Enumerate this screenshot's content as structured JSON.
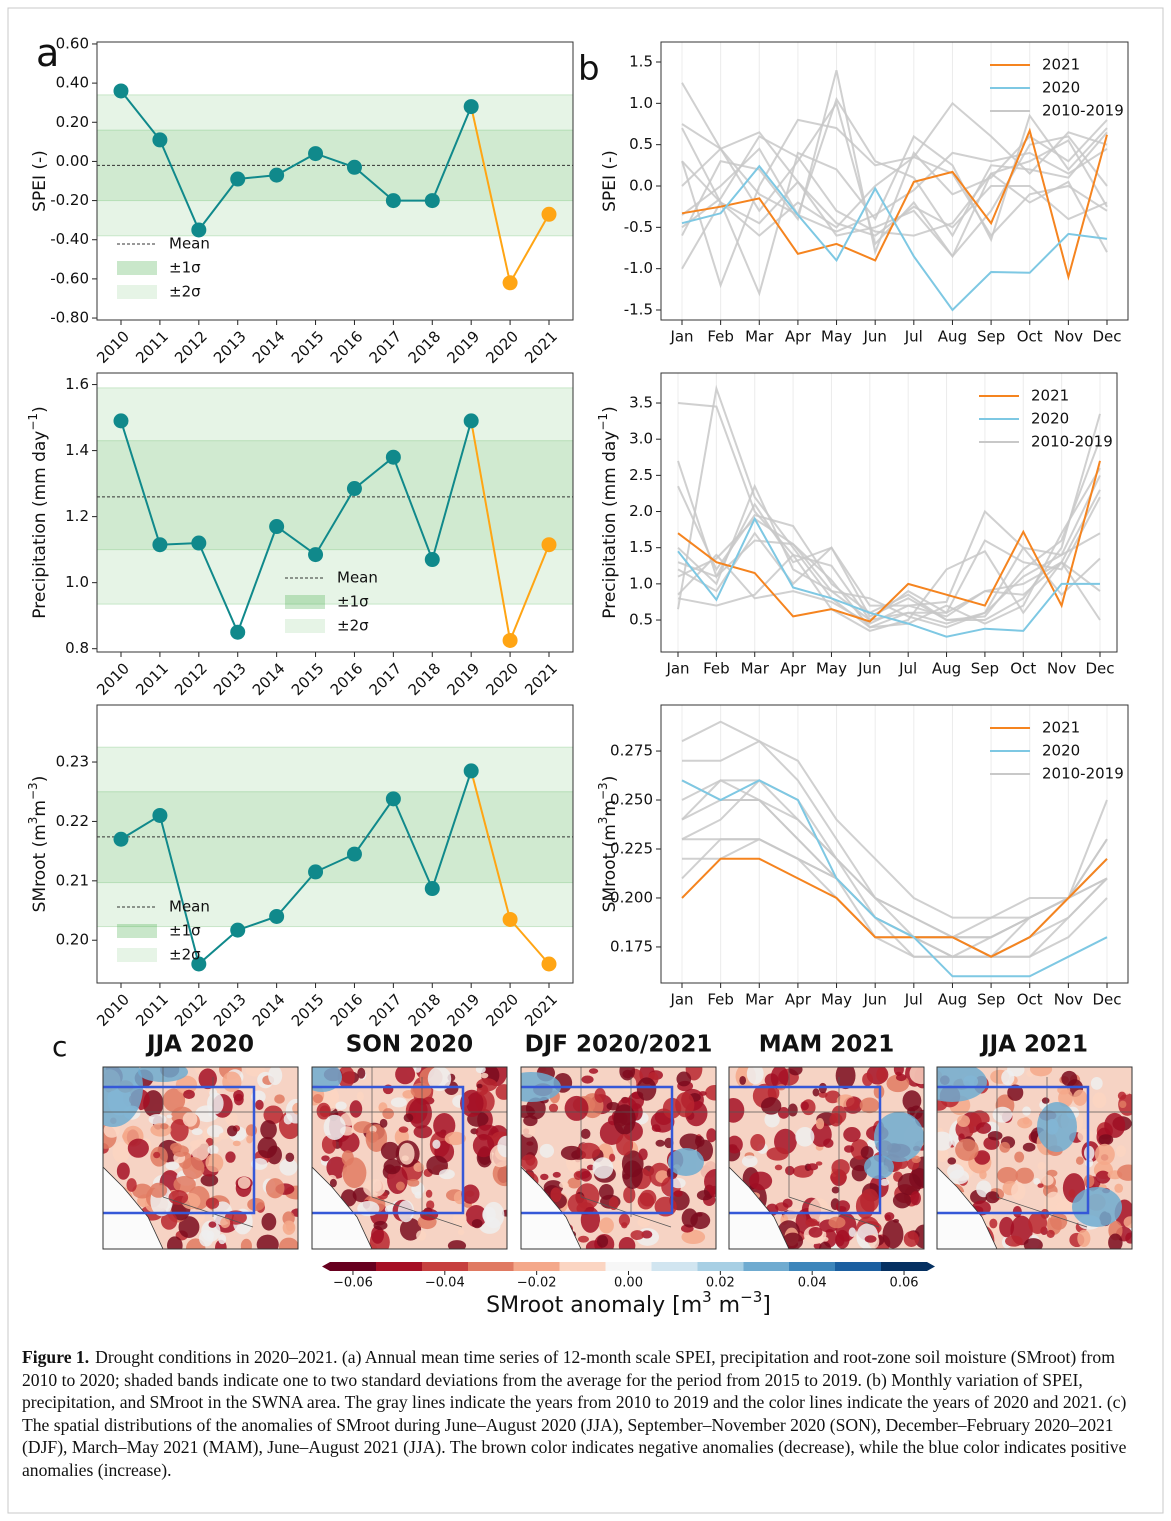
{
  "panel_labels": [
    "a",
    "b",
    "c"
  ],
  "chart_data": [
    {
      "type": "line",
      "ylabel": [
        "SPEI (-)"
      ],
      "categories": [
        "2010",
        "2011",
        "2012",
        "2013",
        "2014",
        "2015",
        "2016",
        "2017",
        "2018",
        "2019",
        "2020",
        "2021"
      ],
      "ylim": [
        -0.81,
        0.61
      ],
      "yticks": [
        {
          "value": 0.6,
          "label": "0.60"
        },
        {
          "value": 0.4,
          "label": "0.40"
        },
        {
          "value": 0.2,
          "label": "0.20"
        },
        {
          "value": 0,
          "label": "0.00"
        },
        {
          "value": -0.2,
          "label": "-0.20"
        },
        {
          "value": -0.4,
          "label": "-0.40"
        },
        {
          "value": -0.6,
          "label": "-0.60"
        },
        {
          "value": -0.8,
          "label": "-0.80"
        }
      ],
      "mean": -0.02,
      "mean_label": "Mean",
      "bands": [
        {
          "name": "±2σ",
          "lower": -0.38,
          "upper": 0.34,
          "color": "#4caf50"
        },
        {
          "name": "±1σ",
          "lower": -0.2,
          "upper": 0.16,
          "color": "#4caf50"
        }
      ],
      "markers": true,
      "legend": "lower left",
      "series": [
        {
          "color": "#10898b",
          "values": [
            0.36,
            0.11,
            -0.35,
            -0.09,
            -0.07,
            0.04,
            -0.03,
            -0.2,
            -0.2,
            0.28,
            null,
            null
          ]
        },
        {
          "color": "#ffa514",
          "join_previous": true,
          "values": [
            null,
            null,
            null,
            null,
            null,
            null,
            null,
            null,
            null,
            null,
            -0.62,
            -0.27
          ]
        }
      ]
    },
    {
      "type": "line",
      "ylabel": [
        "Precipitation (mm day",
        "−1",
        ")"
      ],
      "categories": [
        "2010",
        "2011",
        "2012",
        "2013",
        "2014",
        "2015",
        "2016",
        "2017",
        "2018",
        "2019",
        "2020",
        "2021"
      ],
      "ylim": [
        0.79,
        1.635
      ],
      "yticks": [
        0.8,
        {
          "value": 1,
          "label": "1.0"
        },
        1.2,
        1.4,
        1.6
      ],
      "mean": 1.26,
      "mean_label": "Mean",
      "bands": [
        {
          "name": "±2σ",
          "lower": 0.935,
          "upper": 1.59,
          "color": "#4caf50"
        },
        {
          "name": "±1σ",
          "lower": 1.1,
          "upper": 1.43,
          "color": "#4caf50"
        }
      ],
      "markers": true,
      "legend": "lower center",
      "series": [
        {
          "color": "#10898b",
          "values": [
            1.49,
            1.115,
            1.12,
            0.85,
            1.17,
            1.085,
            1.285,
            1.38,
            1.07,
            1.49,
            null,
            null
          ]
        },
        {
          "color": "#ffa514",
          "join_previous": true,
          "values": [
            null,
            null,
            null,
            null,
            null,
            null,
            null,
            null,
            null,
            null,
            0.825,
            1.115
          ]
        }
      ]
    },
    {
      "type": "line",
      "ylabel": [
        "SMroot (m",
        "3",
        "m",
        "−3",
        ")"
      ],
      "categories": [
        "2010",
        "2011",
        "2012",
        "2013",
        "2014",
        "2015",
        "2016",
        "2017",
        "2018",
        "2019",
        "2020",
        "2021"
      ],
      "ylim": [
        0.1928,
        0.2396
      ],
      "yticks": [
        {
          "value": 0.2,
          "label": "0.20"
        },
        0.21,
        0.22,
        0.23
      ],
      "mean": 0.2174,
      "mean_label": "Mean",
      "bands": [
        {
          "name": "±2σ",
          "lower": 0.2023,
          "upper": 0.2325,
          "color": "#4caf50"
        },
        {
          "name": "±1σ",
          "lower": 0.2097,
          "upper": 0.225,
          "color": "#4caf50"
        }
      ],
      "markers": true,
      "legend": "lower left",
      "series": [
        {
          "color": "#10898b",
          "values": [
            0.217,
            0.221,
            0.196,
            0.2017,
            0.204,
            0.2115,
            0.2145,
            0.2238,
            0.2087,
            0.2285,
            null,
            null
          ]
        },
        {
          "color": "#ffa514",
          "join_previous": true,
          "values": [
            null,
            null,
            null,
            null,
            null,
            null,
            null,
            null,
            null,
            null,
            0.2035,
            0.196
          ]
        }
      ]
    },
    {
      "type": "line",
      "ylabel": [
        "SPEI (-)"
      ],
      "categories": [
        "Jan",
        "Feb",
        "Mar",
        "Apr",
        "May",
        "Jun",
        "Jul",
        "Aug",
        "Sep",
        "Oct",
        "Nov",
        "Dec"
      ],
      "ylim": [
        -1.621,
        1.742
      ],
      "yticks": [
        1.5,
        {
          "value": 1,
          "label": "1.0"
        },
        0.5,
        {
          "value": 0,
          "label": "0.0"
        },
        -0.5,
        {
          "value": -1,
          "label": "-1.0"
        },
        -1.5
      ],
      "grid": "x",
      "legend": "upper right",
      "series": [
        {
          "name": "2021",
          "color": "#f5841f",
          "values": [
            -0.33,
            -0.25,
            -0.15,
            -0.82,
            -0.7,
            -0.9,
            0.05,
            0.17,
            -0.45,
            0.67,
            -1.1,
            0.62
          ]
        },
        {
          "name": "2020",
          "color": "#7ec8e3",
          "values": [
            -0.45,
            -0.33,
            0.24,
            -0.35,
            -0.9,
            -0.03,
            -0.85,
            -1.5,
            -1.04,
            -1.05,
            -0.58,
            -0.64
          ]
        },
        {
          "name": "2010-2019",
          "color": "#c8c8c8",
          "lines": [
            [
              1.25,
              0.45,
              -0.1,
              -0.35,
              1.05,
              0.3,
              0.1,
              -0.6,
              0.25,
              0.2,
              0.1,
              0.65
            ],
            [
              0.75,
              0.45,
              0.65,
              0.05,
              -0.6,
              -0.5,
              -0.3,
              -0.85,
              0.15,
              0.3,
              0.55,
              -0.25
            ],
            [
              -1.0,
              -0.2,
              -1.3,
              0.4,
              0.2,
              -0.4,
              0.6,
              0.25,
              -0.65,
              0.85,
              0.2,
              0.7
            ],
            [
              0.3,
              -1.2,
              0.0,
              0.8,
              0.7,
              0.25,
              0.35,
              1.0,
              0.6,
              0.15,
              0.65,
              0.5
            ],
            [
              -0.6,
              0.3,
              0.2,
              -0.4,
              1.4,
              -0.8,
              0.4,
              -0.1,
              0.1,
              0.6,
              0.3,
              0.8
            ],
            [
              -0.5,
              -0.15,
              0.6,
              0.35,
              -0.3,
              -0.55,
              -0.6,
              -0.45,
              0.15,
              -0.2,
              0.05,
              -0.8
            ],
            [
              0.0,
              0.45,
              -0.3,
              0.3,
              1.0,
              -0.7,
              -0.2,
              -0.85,
              -0.3,
              0.5,
              0.6,
              0.0
            ],
            [
              0.7,
              -0.2,
              -0.6,
              -0.2,
              -0.5,
              0.0,
              0.35,
              0.15,
              -0.6,
              -0.1,
              0.0,
              -0.3
            ],
            [
              -0.35,
              0.0,
              0.45,
              -0.35,
              -0.55,
              -0.35,
              -0.05,
              0.4,
              0.3,
              0.4,
              0.15,
              0.45
            ],
            [
              0.3,
              -0.2,
              -0.45,
              0.05,
              -0.45,
              -0.6,
              -0.25,
              -0.5,
              0.0,
              0.0,
              -0.4,
              -0.2
            ]
          ]
        }
      ]
    },
    {
      "type": "line",
      "ylabel": [
        "Precipitation (mm day",
        "−1",
        ")"
      ],
      "categories": [
        "Jan",
        "Feb",
        "Mar",
        "Apr",
        "May",
        "Jun",
        "Jul",
        "Aug",
        "Sep",
        "Oct",
        "Nov",
        "Dec"
      ],
      "ylim": [
        0.058,
        3.915
      ],
      "yticks": [
        0.5,
        {
          "value": 1,
          "label": "1.0"
        },
        1.5,
        {
          "value": 2,
          "label": "2.0"
        },
        2.5,
        {
          "value": 3,
          "label": "3.0"
        },
        3.5
      ],
      "grid": "x",
      "legend": "upper right",
      "series": [
        {
          "name": "2021",
          "color": "#f5841f",
          "values": [
            1.7,
            1.3,
            1.15,
            0.55,
            0.65,
            0.48,
            1.0,
            0.85,
            0.7,
            1.72,
            0.7,
            2.7
          ]
        },
        {
          "name": "2020",
          "color": "#7ec8e3",
          "values": [
            1.45,
            0.78,
            1.9,
            0.95,
            0.8,
            0.6,
            0.45,
            0.27,
            0.38,
            0.35,
            1.0,
            1.0
          ]
        },
        {
          "name": "2010-2019",
          "color": "#c8c8c8",
          "lines": [
            [
              3.5,
              3.45,
              2.0,
              1.4,
              1.25,
              0.5,
              0.9,
              0.6,
              0.9,
              1.0,
              1.3,
              2.3
            ],
            [
              2.7,
              1.1,
              2.1,
              1.3,
              1.5,
              0.55,
              0.8,
              0.5,
              0.5,
              0.8,
              1.5,
              3.35
            ],
            [
              0.65,
              3.7,
              2.2,
              1.5,
              0.8,
              0.4,
              0.6,
              0.6,
              1.6,
              1.3,
              1.2,
              2.2
            ],
            [
              2.35,
              1.2,
              1.95,
              1.8,
              1.0,
              0.6,
              0.85,
              0.5,
              0.55,
              1.2,
              1.6,
              3.0
            ],
            [
              0.8,
              0.7,
              0.85,
              1.4,
              0.65,
              0.35,
              0.5,
              1.2,
              1.45,
              0.6,
              1.3,
              0.5
            ],
            [
              1.5,
              1.0,
              2.35,
              1.2,
              0.9,
              0.8,
              0.55,
              0.4,
              0.6,
              1.5,
              0.85,
              1.35
            ],
            [
              1.3,
              1.1,
              1.6,
              1.55,
              0.9,
              0.5,
              0.6,
              0.45,
              0.6,
              1.1,
              1.4,
              2.5
            ],
            [
              0.85,
              1.4,
              0.8,
              0.9,
              0.75,
              0.45,
              0.7,
              0.75,
              2.0,
              1.5,
              1.4,
              1.7
            ],
            [
              1.1,
              1.35,
              1.9,
              1.55,
              1.05,
              0.4,
              0.45,
              0.7,
              0.45,
              0.7,
              1.7,
              2.6
            ],
            [
              1.2,
              0.9,
              1.7,
              1.0,
              1.5,
              0.7,
              0.7,
              0.55,
              0.9,
              0.85,
              1.3,
              0.9
            ]
          ]
        }
      ]
    },
    {
      "type": "line",
      "ylabel": [
        "SMroot (m",
        "3",
        "m",
        "−3",
        ")"
      ],
      "categories": [
        "Jan",
        "Feb",
        "Mar",
        "Apr",
        "May",
        "Jun",
        "Jul",
        "Aug",
        "Sep",
        "Oct",
        "Nov",
        "Dec"
      ],
      "ylim": [
        0.1566,
        0.2985
      ],
      "yticks": [
        0.175,
        {
          "value": 0.2,
          "label": "0.200"
        },
        0.225,
        {
          "value": 0.25,
          "label": "0.250"
        },
        0.275
      ],
      "grid": "x",
      "legend": "upper right",
      "series": [
        {
          "name": "2021",
          "color": "#f5841f",
          "values": [
            0.2,
            0.22,
            0.22,
            0.21,
            0.2,
            0.18,
            0.18,
            0.18,
            0.17,
            0.18,
            0.2,
            0.22
          ]
        },
        {
          "name": "2020",
          "color": "#7ec8e3",
          "values": [
            0.26,
            0.25,
            0.26,
            0.25,
            0.21,
            0.19,
            0.18,
            0.16,
            0.16,
            0.16,
            0.17,
            0.18
          ]
        },
        {
          "name": "2010-2019",
          "color": "#c8c8c8",
          "lines": [
            [
              0.28,
              0.29,
              0.28,
              0.27,
              0.24,
              0.22,
              0.2,
              0.19,
              0.19,
              0.2,
              0.2,
              0.23
            ],
            [
              0.27,
              0.27,
              0.28,
              0.26,
              0.23,
              0.2,
              0.19,
              0.18,
              0.19,
              0.19,
              0.2,
              0.25
            ],
            [
              0.25,
              0.26,
              0.26,
              0.25,
              0.22,
              0.2,
              0.18,
              0.18,
              0.17,
              0.18,
              0.2,
              0.23
            ],
            [
              0.24,
              0.26,
              0.25,
              0.24,
              0.22,
              0.2,
              0.19,
              0.18,
              0.18,
              0.19,
              0.2,
              0.22
            ],
            [
              0.23,
              0.23,
              0.23,
              0.22,
              0.21,
              0.19,
              0.18,
              0.17,
              0.17,
              0.19,
              0.2,
              0.21
            ],
            [
              0.22,
              0.22,
              0.23,
              0.22,
              0.21,
              0.18,
              0.18,
              0.18,
              0.17,
              0.18,
              0.19,
              0.21
            ],
            [
              0.24,
              0.25,
              0.25,
              0.23,
              0.21,
              0.19,
              0.18,
              0.18,
              0.18,
              0.19,
              0.2,
              0.22
            ],
            [
              0.21,
              0.23,
              0.23,
              0.22,
              0.2,
              0.18,
              0.17,
              0.17,
              0.17,
              0.17,
              0.18,
              0.2
            ],
            [
              0.26,
              0.25,
              0.25,
              0.23,
              0.21,
              0.19,
              0.18,
              0.17,
              0.18,
              0.19,
              0.2,
              0.21
            ],
            [
              0.23,
              0.24,
              0.26,
              0.24,
              0.22,
              0.19,
              0.17,
              0.17,
              0.17,
              0.17,
              0.19,
              0.21
            ]
          ]
        }
      ]
    }
  ],
  "maps": {
    "titles": [
      "JJA 2020",
      "SON 2020",
      "DJF 2020/2021",
      "MAM 2021",
      "JJA 2021"
    ],
    "colorbar": {
      "lim": [
        -0.065,
        0.065
      ],
      "ticks": [
        {
          "value": -0.06,
          "label": "−0.06"
        },
        {
          "value": -0.04,
          "label": "−0.04"
        },
        {
          "value": -0.02,
          "label": "−0.02"
        },
        {
          "value": 0,
          "label": "0.00"
        },
        {
          "value": 0.02,
          "label": "0.02"
        },
        {
          "value": 0.04,
          "label": "0.04"
        },
        {
          "value": 0.06,
          "label": "0.06"
        }
      ],
      "label": [
        "SMroot anomaly [m",
        "3",
        " m",
        "−3",
        "]"
      ]
    }
  },
  "caption": {
    "label": "Figure 1.",
    "text": "Drought conditions in 2020–2021. (a) Annual mean time series of 12-month scale SPEI, precipitation and root-zone soil moisture (SMroot) from 2010 to 2020; shaded bands indicate one to two standard deviations from the average for the period from 2015 to 2019. (b) Monthly variation of SPEI, precipitation, and SMroot in the SWNA area. The gray lines indicate the years from 2010 to 2019 and the color lines indicate the years of 2020 and 2021. (c) The spatial distributions of the anomalies of SMroot during June–August 2020 (JJA), September–November 2020 (SON), December–February 2020–2021 (DJF), March–May 2021 (MAM), June–August 2021 (JJA). The brown color indicates negative anomalies (decrease), while the blue color indicates positive anomalies (increase)."
  }
}
